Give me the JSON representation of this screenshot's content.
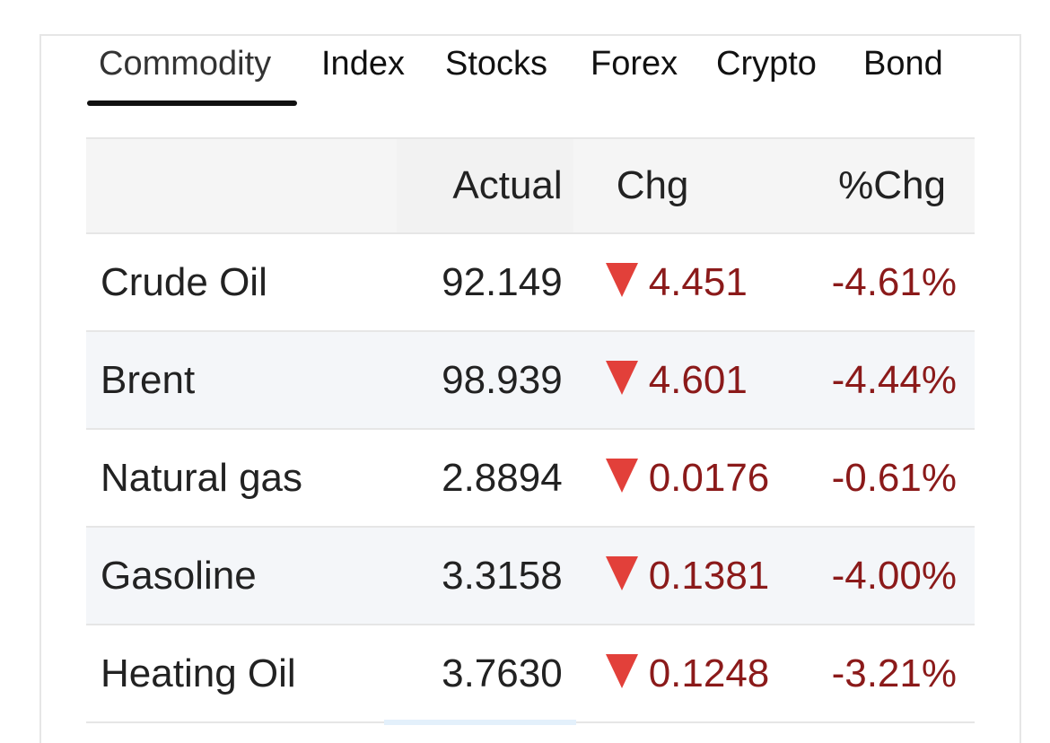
{
  "tabs": [
    {
      "label": "Commodity",
      "active": true
    },
    {
      "label": "Index",
      "active": false
    },
    {
      "label": "Stocks",
      "active": false
    },
    {
      "label": "Forex",
      "active": false
    },
    {
      "label": "Crypto",
      "active": false
    },
    {
      "label": "Bond",
      "active": false
    }
  ],
  "table": {
    "headers": {
      "name": "",
      "actual": "Actual",
      "chg": "Chg",
      "pct": "%Chg"
    },
    "rows": [
      {
        "name": "Crude Oil",
        "actual": "92.149",
        "chg": "4.451",
        "pct": "-4.61%",
        "direction": "down"
      },
      {
        "name": "Brent",
        "actual": "98.939",
        "chg": "4.601",
        "pct": "-4.44%",
        "direction": "down"
      },
      {
        "name": "Natural gas",
        "actual": "2.8894",
        "chg": "0.0176",
        "pct": "-0.61%",
        "direction": "down"
      },
      {
        "name": "Gasoline",
        "actual": "3.3158",
        "chg": "0.1381",
        "pct": "-4.00%",
        "direction": "down"
      },
      {
        "name": "Heating Oil",
        "actual": "3.7630",
        "chg": "0.1248",
        "pct": "-3.21%",
        "direction": "down"
      }
    ]
  },
  "colors": {
    "negative": "#8b1a1a",
    "down_arrow": "#e2403a",
    "active_tab_underline": "#111111"
  },
  "icons": {
    "direction_down": "down-triangle-icon"
  }
}
